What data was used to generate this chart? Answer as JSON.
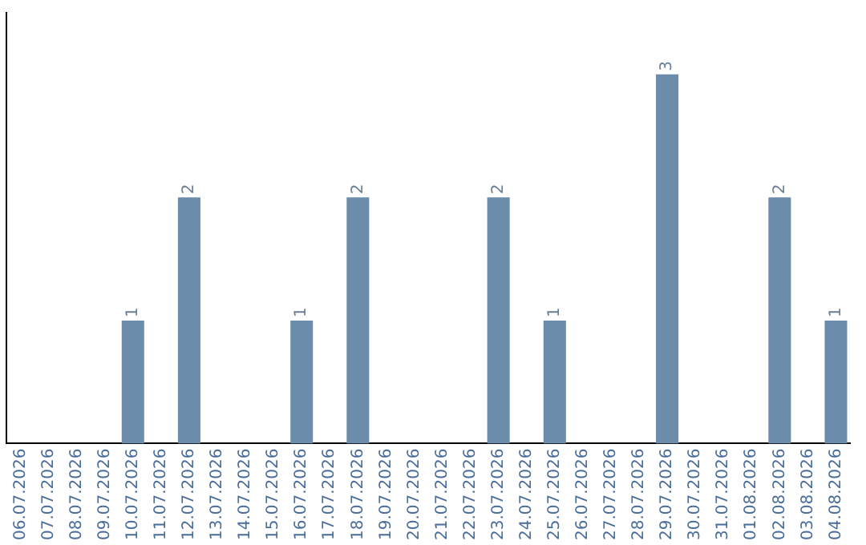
{
  "chart_data": {
    "type": "bar",
    "categories": [
      "06.07.2026",
      "07.07.2026",
      "08.07.2026",
      "09.07.2026",
      "10.07.2026",
      "11.07.2026",
      "12.07.2026",
      "13.07.2026",
      "14.07.2026",
      "15.07.2026",
      "16.07.2026",
      "17.07.2026",
      "18.07.2026",
      "19.07.2026",
      "20.07.2026",
      "21.07.2026",
      "22.07.2026",
      "23.07.2026",
      "24.07.2026",
      "25.07.2026",
      "26.07.2026",
      "27.07.2026",
      "28.07.2026",
      "29.07.2026",
      "30.07.2026",
      "31.07.2026",
      "01.08.2026",
      "02.08.2026",
      "03.08.2026",
      "04.08.2026"
    ],
    "values": [
      0,
      0,
      0,
      0,
      1,
      0,
      2,
      0,
      0,
      0,
      1,
      0,
      2,
      0,
      0,
      0,
      0,
      2,
      0,
      1,
      0,
      0,
      0,
      3,
      0,
      0,
      0,
      2,
      0,
      1
    ],
    "value_labels": [
      null,
      null,
      null,
      null,
      "1",
      null,
      "2",
      null,
      null,
      null,
      "1",
      null,
      "2",
      null,
      null,
      null,
      null,
      "2",
      null,
      "1",
      null,
      null,
      null,
      "3",
      null,
      null,
      null,
      "2",
      null,
      "1"
    ],
    "color": "#6b8cab",
    "tick_labels": "x",
    "grid": false,
    "legend": false
  }
}
